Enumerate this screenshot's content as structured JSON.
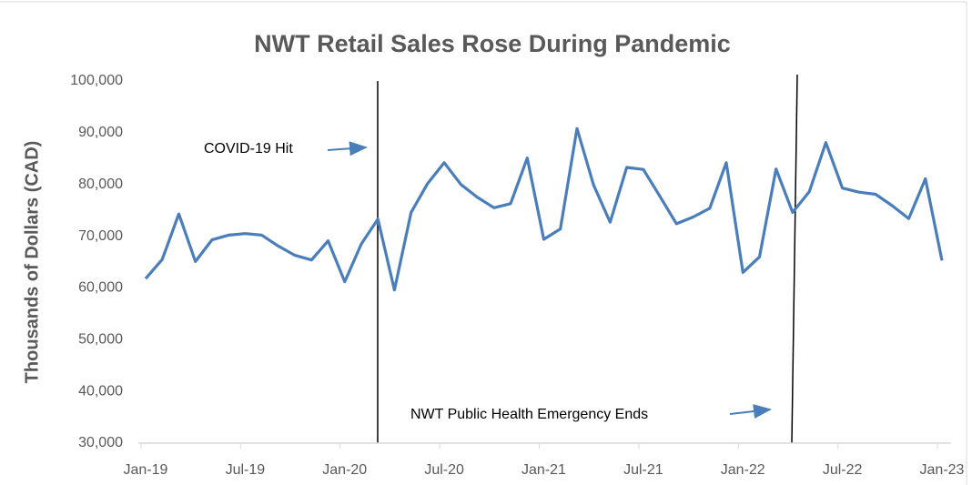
{
  "chart_data": {
    "type": "line",
    "title": "NWT Retail Sales Rose During Pandemic",
    "y_label": "Thousands of Dollars (CAD)",
    "annotations": [
      "COVID-19 Hit",
      "NWT Public Health Emergency Ends"
    ],
    "categories": [
      "Jan-19",
      null,
      null,
      null,
      null,
      null,
      "Jul-19",
      null,
      null,
      null,
      null,
      null,
      "Jan-20",
      null,
      null,
      null,
      null,
      null,
      "Jul-20",
      null,
      null,
      null,
      null,
      null,
      "Jan-21",
      null,
      null,
      null,
      null,
      null,
      "Jul-21",
      null,
      null,
      null,
      null,
      null,
      "Jan-22",
      null,
      null,
      null,
      null,
      null,
      "Jul-22",
      null,
      null,
      null,
      null,
      null,
      "Jan-23"
    ],
    "series": [
      {
        "name": "Retail Sales",
        "color": "#4a7ebb",
        "values": [
          61800,
          65500,
          74300,
          65100,
          69300,
          70200,
          70500,
          70200,
          68100,
          66300,
          65400,
          69100,
          61200,
          68500,
          73300,
          59600,
          74600,
          80200,
          84200,
          80000,
          77500,
          75500,
          76300,
          85100,
          69400,
          71400,
          90800,
          79900,
          72700,
          83300,
          82900,
          77700,
          72400,
          73700,
          75400,
          84200,
          63000,
          66000,
          83000,
          74600,
          78600,
          88100,
          79300,
          78500,
          78100,
          75900,
          73400,
          81100,
          65300
        ]
      }
    ],
    "ylim": [
      30000,
      100000
    ],
    "yticks": [
      {
        "value": 30000,
        "label": "30,000"
      },
      {
        "value": 40000,
        "label": "40,000"
      },
      {
        "value": 50000,
        "label": "50,000"
      },
      {
        "value": 60000,
        "label": "60,000"
      },
      {
        "value": 70000,
        "label": "70,000"
      },
      {
        "value": 80000,
        "label": "80,000"
      },
      {
        "value": 90000,
        "label": "90,000"
      },
      {
        "value": 100000,
        "label": "100,000"
      }
    ],
    "grid": false
  }
}
